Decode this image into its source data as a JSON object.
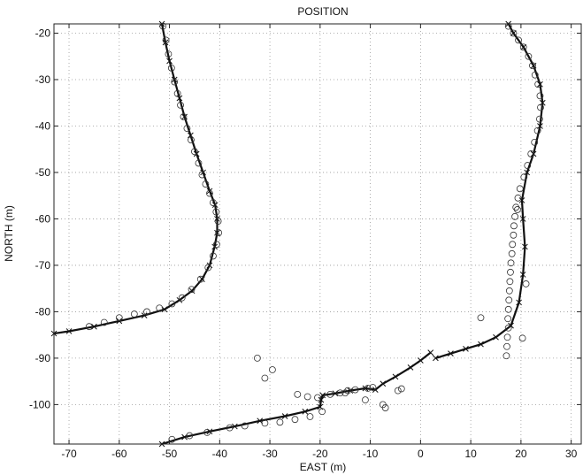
{
  "chart_data": {
    "type": "scatter",
    "title": "POSITION",
    "xlabel": "EAST (m)",
    "ylabel": "NORTH (m)",
    "xlim": [
      -73,
      32
    ],
    "ylim": [
      -108.5,
      -18
    ],
    "xticks": [
      -70,
      -60,
      -50,
      -40,
      -30,
      -20,
      -10,
      0,
      10,
      20,
      30
    ],
    "yticks": [
      -20,
      -30,
      -40,
      -50,
      -60,
      -70,
      -80,
      -90,
      -100
    ],
    "grid": true,
    "series": [
      {
        "style": "line-x",
        "color": "#111111",
        "points": [
          [
            -51.5,
            -18
          ],
          [
            -50.8,
            -22
          ],
          [
            -50,
            -26
          ],
          [
            -49,
            -30
          ],
          [
            -48,
            -34
          ],
          [
            -47,
            -38
          ],
          [
            -45.8,
            -42
          ],
          [
            -44.6,
            -46
          ],
          [
            -43.3,
            -50
          ],
          [
            -42,
            -54
          ],
          [
            -40.9,
            -57
          ],
          [
            -40.5,
            -60
          ],
          [
            -40.5,
            -63
          ],
          [
            -41,
            -66
          ],
          [
            -42,
            -70
          ],
          [
            -43.5,
            -73
          ],
          [
            -45.5,
            -75.5
          ],
          [
            -48,
            -77.5
          ],
          [
            -51,
            -79.5
          ],
          [
            -55,
            -80.8
          ],
          [
            -60,
            -82
          ],
          [
            -65,
            -83.2
          ],
          [
            -70,
            -84.2
          ],
          [
            -73,
            -84.7
          ]
        ]
      },
      {
        "style": "circles",
        "color": "#333333",
        "points": [
          [
            -51.3,
            -18.5
          ],
          [
            -50.7,
            -21.5
          ],
          [
            -50.2,
            -24.5
          ],
          [
            -49.6,
            -27.5
          ],
          [
            -49,
            -30.5
          ],
          [
            -48.4,
            -33
          ],
          [
            -47.8,
            -35.5
          ],
          [
            -47.2,
            -38
          ],
          [
            -46.5,
            -40.5
          ],
          [
            -45.7,
            -43
          ],
          [
            -45,
            -45.5
          ],
          [
            -44.2,
            -48
          ],
          [
            -43.5,
            -50.5
          ],
          [
            -42.8,
            -52.5
          ],
          [
            -42,
            -54.5
          ],
          [
            -41.3,
            -56.5
          ],
          [
            -40.7,
            -58.5
          ],
          [
            -40.3,
            -60.5
          ],
          [
            -40.2,
            -63
          ],
          [
            -40.6,
            -65.5
          ],
          [
            -41.3,
            -68
          ],
          [
            -42.3,
            -70.5
          ],
          [
            -43.8,
            -73
          ],
          [
            -45.6,
            -75.2
          ],
          [
            -47.5,
            -77
          ],
          [
            -49.5,
            -78.3
          ],
          [
            -52,
            -79.2
          ],
          [
            -54.5,
            -80
          ],
          [
            -57,
            -80.5
          ],
          [
            -60,
            -81.3
          ],
          [
            -63,
            -82.3
          ],
          [
            -66,
            -83.2
          ]
        ]
      },
      {
        "style": "line-x",
        "color": "#111111",
        "points": [
          [
            -51.5,
            -108.5
          ],
          [
            -47,
            -107
          ],
          [
            -42,
            -105.8
          ],
          [
            -37,
            -104.7
          ],
          [
            -32,
            -103.5
          ],
          [
            -27,
            -102.5
          ],
          [
            -23,
            -101.5
          ],
          [
            -20,
            -100.5
          ],
          [
            -19.8,
            -99
          ],
          [
            -19.5,
            -98
          ],
          [
            -17,
            -97.6
          ],
          [
            -14,
            -97
          ],
          [
            -11,
            -96.5
          ],
          [
            -9,
            -96.8
          ],
          [
            -7.5,
            -95.5
          ],
          [
            -5,
            -94
          ],
          [
            -2,
            -92
          ],
          [
            0,
            -90.5
          ],
          [
            2,
            -88.8
          ]
        ]
      },
      {
        "style": "circles",
        "color": "#333333",
        "points": [
          [
            -49.5,
            -107.5
          ],
          [
            -46,
            -106.7
          ],
          [
            -42.5,
            -106
          ],
          [
            -38,
            -105
          ],
          [
            -35,
            -104.6
          ],
          [
            -31,
            -104
          ],
          [
            -28,
            -103.8
          ],
          [
            -25,
            -103.2
          ],
          [
            -22,
            -102.6
          ],
          [
            -19.6,
            -101.5
          ],
          [
            -24.5,
            -97.8
          ],
          [
            -22.5,
            -98.3
          ],
          [
            -20.5,
            -98.5
          ],
          [
            -18,
            -97.8
          ],
          [
            -16,
            -97.5
          ],
          [
            -14.5,
            -97
          ],
          [
            -13,
            -96.8
          ],
          [
            -10.5,
            -96.5
          ],
          [
            -9.5,
            -96.3
          ],
          [
            -4.5,
            -97
          ],
          [
            -3.8,
            -96.6
          ],
          [
            -7.5,
            -100
          ],
          [
            -7,
            -100.7
          ],
          [
            -11,
            -99
          ],
          [
            -32.5,
            -90
          ],
          [
            -31,
            -94.3
          ],
          [
            -29.5,
            -92.5
          ],
          [
            -15,
            -97.5
          ]
        ]
      },
      {
        "style": "line-x",
        "color": "#111111",
        "points": [
          [
            3,
            -90
          ],
          [
            6,
            -89
          ],
          [
            9,
            -88
          ],
          [
            12,
            -87
          ],
          [
            15,
            -85.5
          ],
          [
            18,
            -83
          ],
          [
            19.6,
            -78
          ],
          [
            20.4,
            -72
          ],
          [
            20.8,
            -66
          ],
          [
            20.4,
            -60
          ],
          [
            20.2,
            -56
          ],
          [
            21.2,
            -50
          ],
          [
            22.5,
            -46
          ],
          [
            23.8,
            -40
          ],
          [
            24.3,
            -35
          ],
          [
            23.8,
            -31
          ],
          [
            22.5,
            -27
          ],
          [
            20.5,
            -23
          ],
          [
            18.5,
            -20
          ],
          [
            17.5,
            -18
          ]
        ]
      },
      {
        "style": "circles",
        "color": "#333333",
        "points": [
          [
            17.5,
            -18.5
          ],
          [
            18.5,
            -20
          ],
          [
            19.5,
            -21.5
          ],
          [
            20.5,
            -23
          ],
          [
            21.5,
            -25
          ],
          [
            22.3,
            -27
          ],
          [
            22.8,
            -29
          ],
          [
            23.4,
            -31
          ],
          [
            23.8,
            -33.5
          ],
          [
            23.9,
            -36
          ],
          [
            23.7,
            -38.5
          ],
          [
            23.3,
            -41
          ],
          [
            22.7,
            -43.5
          ],
          [
            22,
            -46
          ],
          [
            21.3,
            -48.5
          ],
          [
            20.6,
            -51
          ],
          [
            19.8,
            -53.5
          ],
          [
            19.4,
            -55.5
          ],
          [
            19,
            -57.5
          ],
          [
            18.8,
            -59.5
          ],
          [
            18.6,
            -61.5
          ],
          [
            18.5,
            -63.5
          ],
          [
            18.3,
            -65.5
          ],
          [
            18.2,
            -67.5
          ],
          [
            18,
            -69.5
          ],
          [
            17.9,
            -71.5
          ],
          [
            17.8,
            -73.5
          ],
          [
            17.7,
            -75.5
          ],
          [
            17.6,
            -77.5
          ],
          [
            17.5,
            -79.5
          ],
          [
            17.4,
            -81.5
          ],
          [
            17.5,
            -83.5
          ],
          [
            17.3,
            -85.5
          ],
          [
            17.2,
            -87.5
          ],
          [
            17.1,
            -89.5
          ],
          [
            12,
            -81.3
          ],
          [
            20.3,
            -85.7
          ],
          [
            21,
            -74
          ],
          [
            19.3,
            -58
          ]
        ]
      }
    ]
  }
}
